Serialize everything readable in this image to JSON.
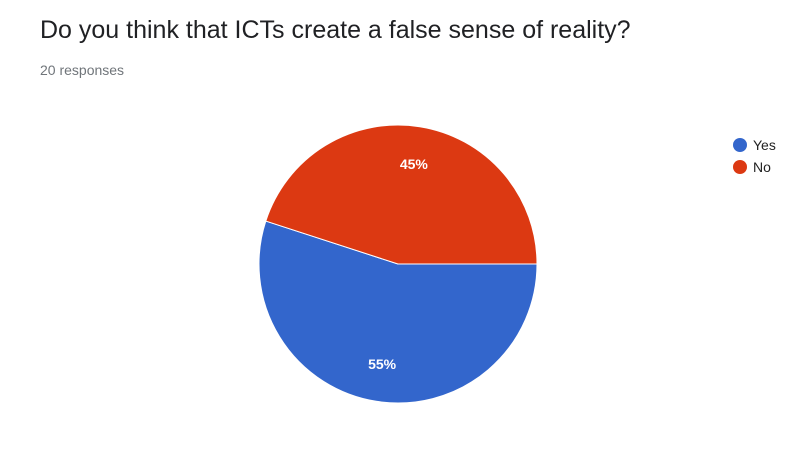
{
  "chart_data": {
    "type": "pie",
    "title": "Do you think that ICTs create a false sense of reality?",
    "subtitle": "20 responses",
    "categories": [
      "Yes",
      "No"
    ],
    "values": [
      55,
      45
    ],
    "labels": [
      "55%",
      "45%"
    ],
    "colors": [
      "#3366cc",
      "#dc3912"
    ],
    "legend_position": "right"
  }
}
